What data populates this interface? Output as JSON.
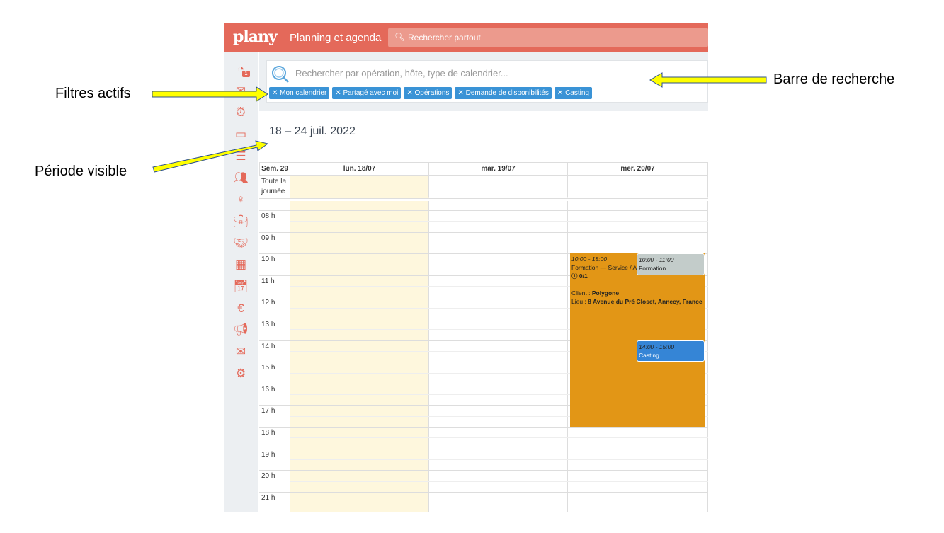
{
  "header": {
    "logo": "plany",
    "title": "Planning et agenda",
    "search_placeholder": "Rechercher partout"
  },
  "sidebar": {
    "icons": [
      "dashboard-icon",
      "notifications-icon",
      "alarm-icon",
      "calendar-icon",
      "checklist-icon",
      "users-icon",
      "dress-icon",
      "briefcase-icon",
      "handshake-icon",
      "building-icon",
      "schedule-icon",
      "money-bag-icon",
      "megaphone-icon",
      "mail-icon",
      "settings-icon"
    ],
    "badge": "1"
  },
  "search": {
    "placeholder": "Rechercher par opération, hôte, type de calendrier...",
    "filters": [
      "Mon calendrier",
      "Partagé avec moi",
      "Opérations",
      "Demande de disponibilités",
      "Casting"
    ]
  },
  "period": "18 – 24 juil. 2022",
  "calendar": {
    "week": "Sem. 29",
    "days": [
      "lun. 18/07",
      "mar. 19/07",
      "mer. 20/07"
    ],
    "allday": "Toute la journée",
    "hours": [
      "08 h",
      "09 h",
      "10 h",
      "11 h",
      "12 h",
      "13 h",
      "14 h",
      "15 h",
      "16 h",
      "17 h",
      "18 h",
      "19 h",
      "20 h",
      "21 h"
    ],
    "events": [
      {
        "time": "10:00 - 18:00",
        "title": "Formation — Service / A",
        "count": "0/1",
        "client_label": "Client :",
        "client": "Polygone",
        "lieu_label": "Lieu :",
        "lieu": "8 Avenue du Pré Closet, Annecy, France",
        "color": "#e29616"
      },
      {
        "time": "10:00 - 11:00",
        "title": "Formation",
        "color": "#c3ccca"
      },
      {
        "time": "14:00 - 15:00",
        "title": "Casting",
        "color": "#3585d6"
      }
    ]
  },
  "annotations": {
    "filters": "Filtres actifs",
    "search": "Barre de recherche",
    "period": "Période visible"
  },
  "colors": {
    "brand": "#e4695a",
    "chip": "#3a93d6",
    "today": "#fef7dd",
    "arrow": "#ffff00"
  }
}
